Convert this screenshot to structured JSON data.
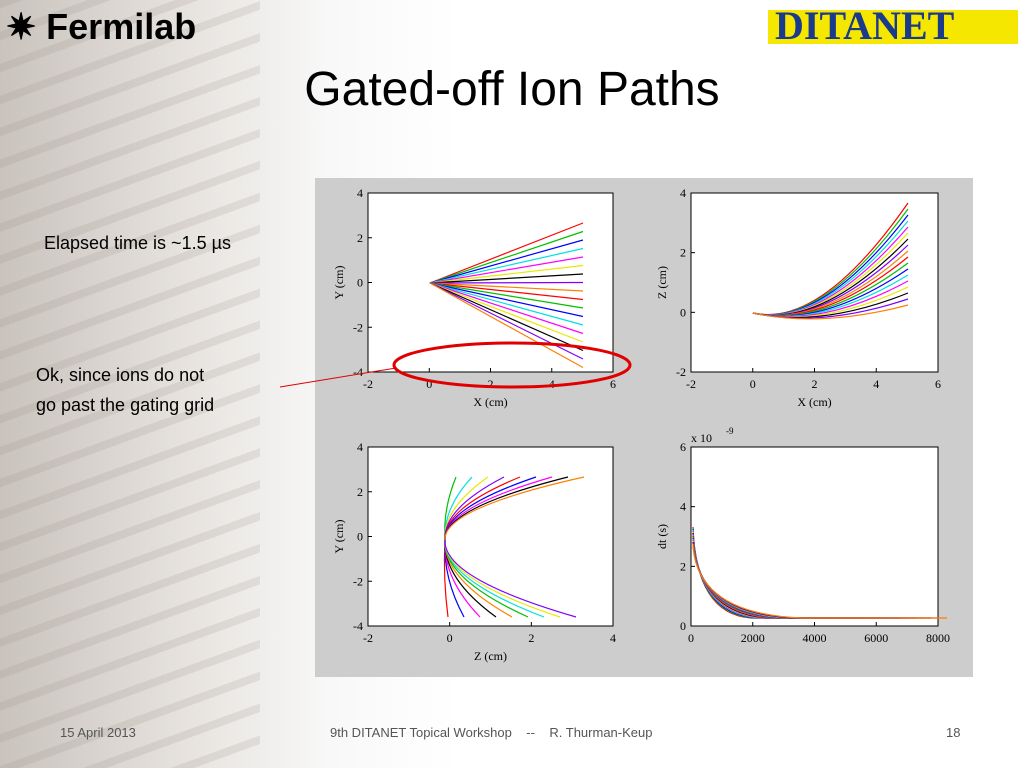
{
  "header": {
    "left_logo": "Fermilab",
    "right_logo": "DITANET"
  },
  "title": "Gated-off Ion Paths",
  "notes": [
    "Elapsed time is ~1.5 µs",
    "Ok, since ions do not",
    "go past the gating grid"
  ],
  "plots": [
    {
      "xlabel": "X (cm)",
      "ylabel": "Y (cm)",
      "xticks": [
        "-2",
        "0",
        "2",
        "4",
        "6"
      ],
      "yticks": [
        "-4",
        "-2",
        "0",
        "2",
        "4"
      ]
    },
    {
      "xlabel": "X (cm)",
      "ylabel": "Z (cm)",
      "xticks": [
        "-2",
        "0",
        "2",
        "4",
        "6"
      ],
      "yticks": [
        "-2",
        "0",
        "2",
        "4"
      ]
    },
    {
      "xlabel": "Z (cm)",
      "ylabel": "Y (cm)",
      "xticks": [
        "-2",
        "0",
        "2",
        "4"
      ],
      "yticks": [
        "-4",
        "-2",
        "0",
        "2",
        "4"
      ]
    },
    {
      "ylabel": "dt (s)",
      "exponent_base": "x 10",
      "exponent": "-9",
      "xticks": [
        "0",
        "2000",
        "4000",
        "6000",
        "8000"
      ],
      "yticks": [
        "0",
        "2",
        "4",
        "6"
      ]
    }
  ],
  "footer": {
    "date": "15 April 2013",
    "event": "9th DITANET Topical Workshop    --    R. Thurman-Keup",
    "page": "18"
  }
}
